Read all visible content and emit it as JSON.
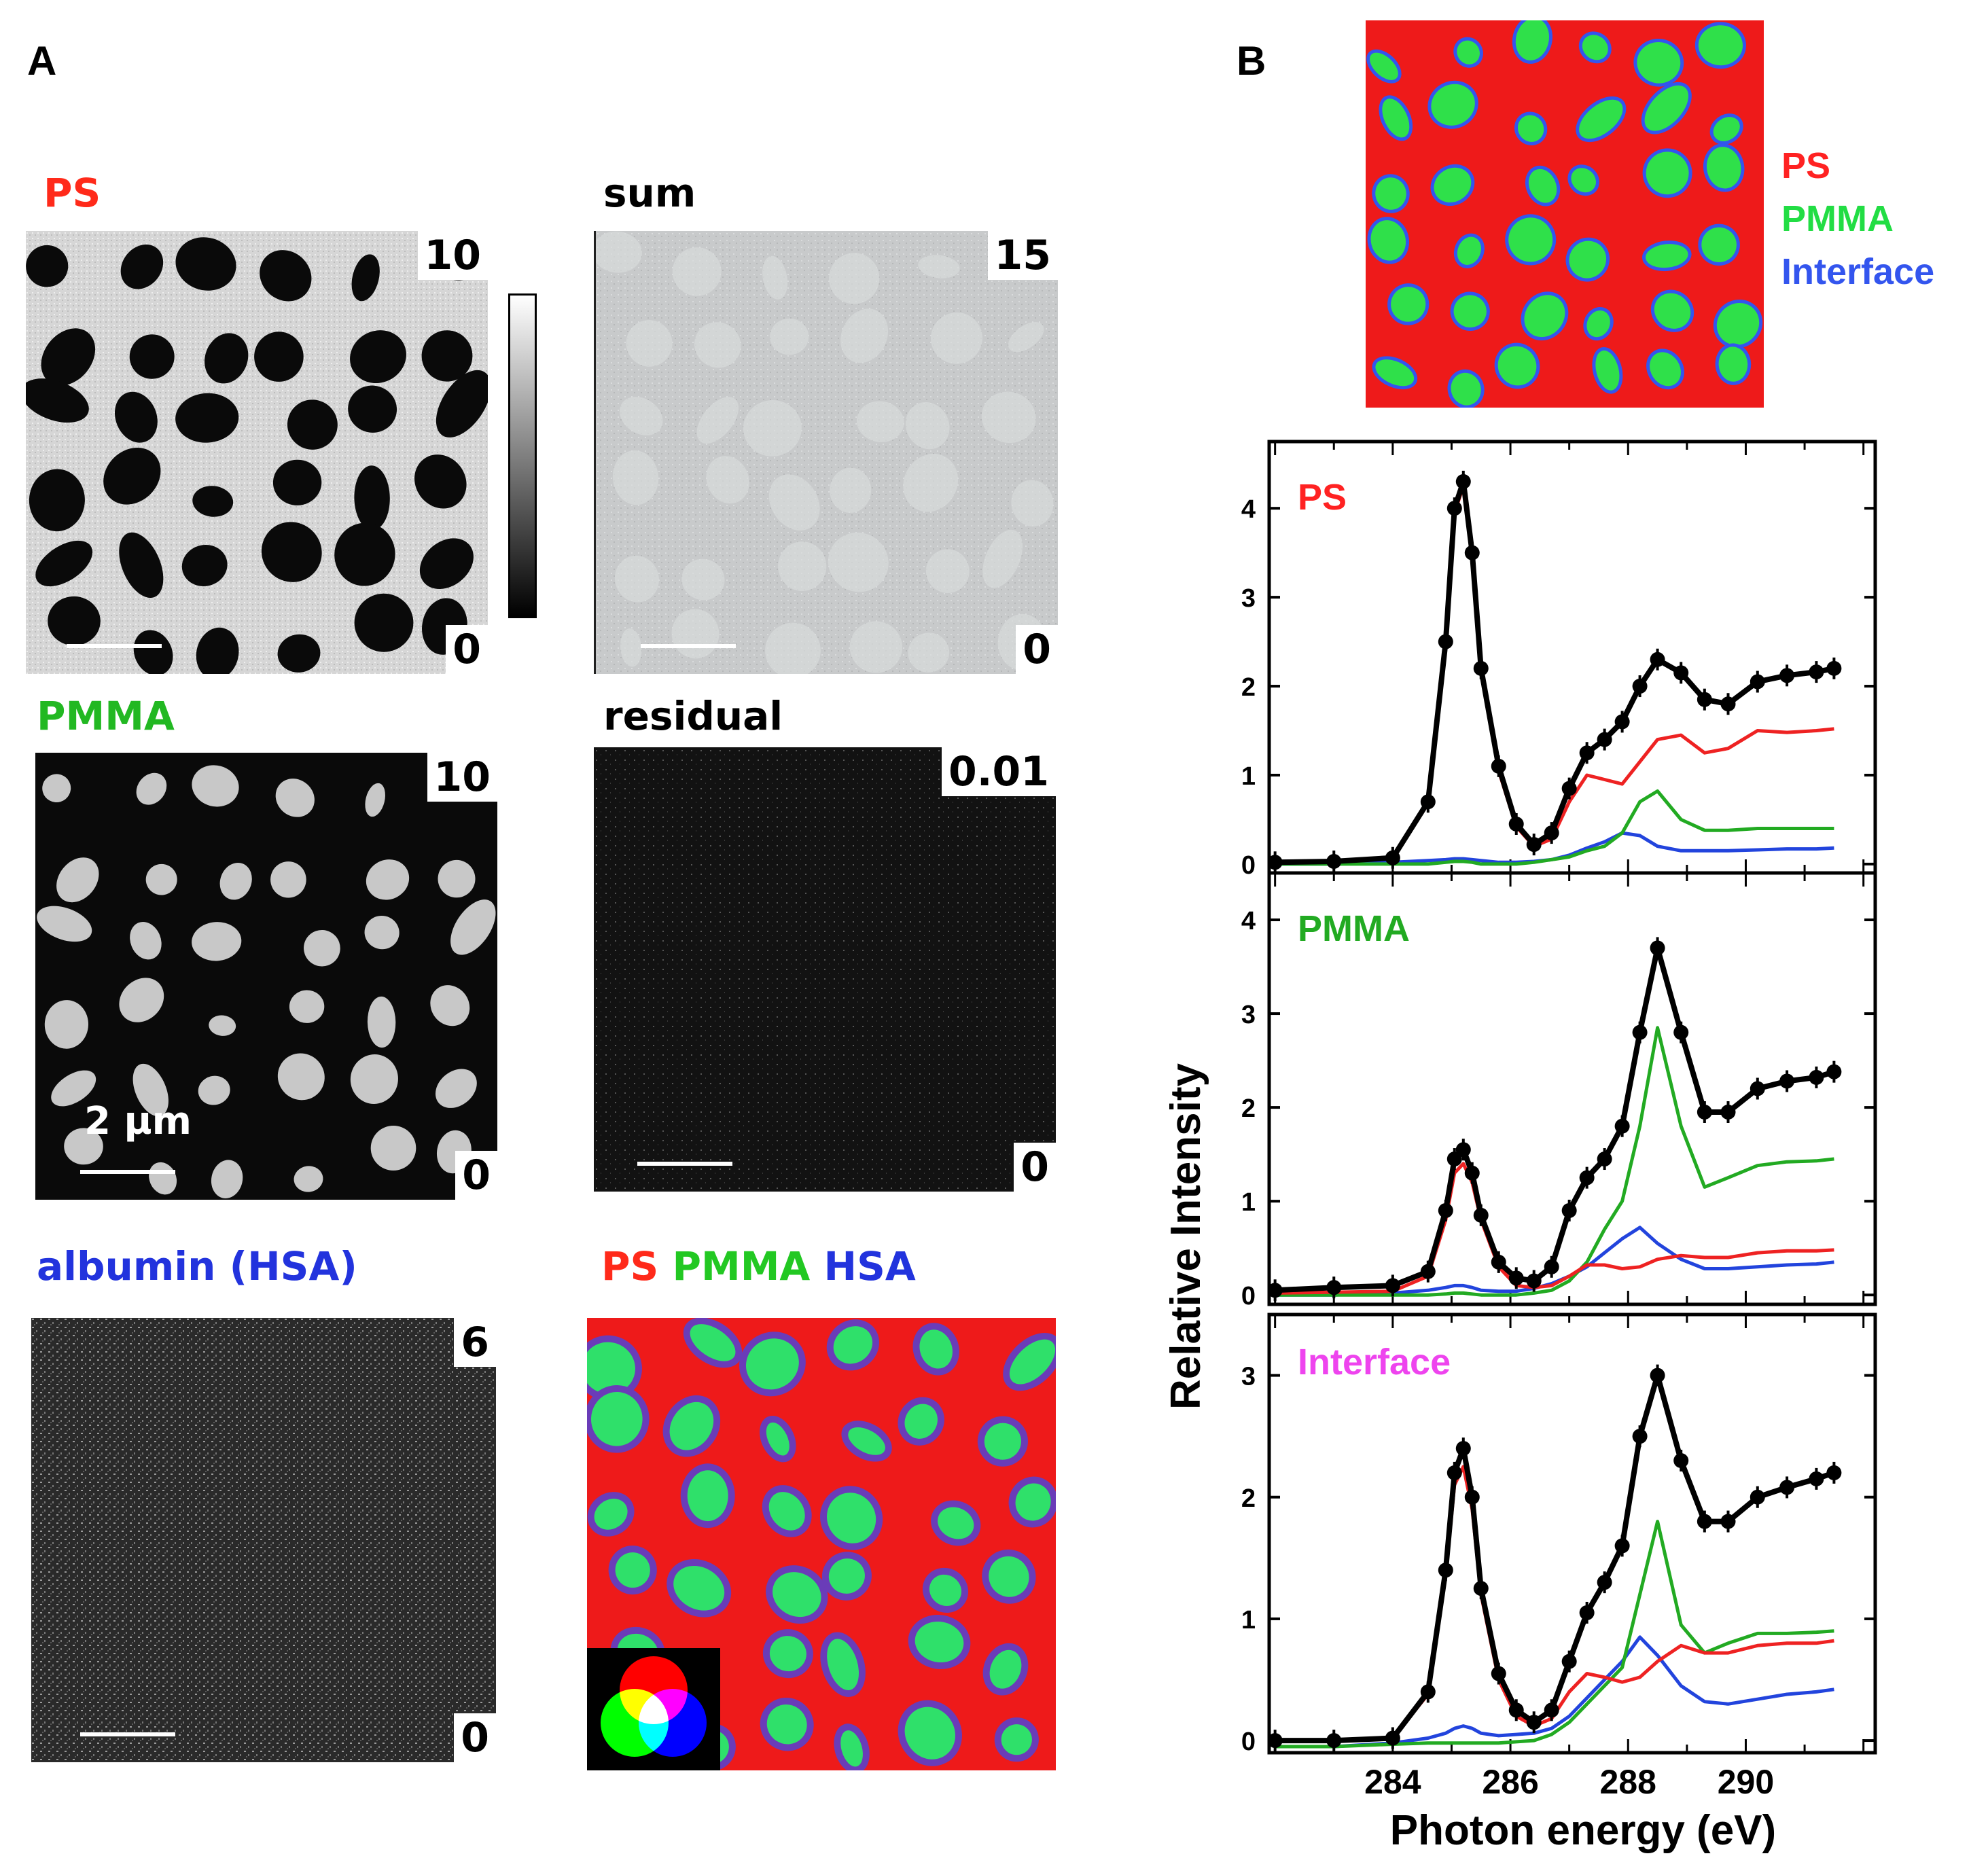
{
  "panelA": {
    "letter": "A",
    "images": [
      {
        "id": "ps",
        "label": "PS",
        "color": "#ff2a1a",
        "max": "10",
        "min": "0"
      },
      {
        "id": "sum",
        "label": "sum",
        "color": "#000000",
        "max": "15",
        "min": "0"
      },
      {
        "id": "pmma",
        "label": "PMMA",
        "color": "#22b822",
        "max": "10",
        "min": "0",
        "scale_text": "2 µm"
      },
      {
        "id": "residual",
        "label": "residual",
        "color": "#000000",
        "max": "0.01",
        "min": "0"
      },
      {
        "id": "hsa",
        "label": "albumin (HSA)",
        "color": "#2233dd",
        "max": "6",
        "min": "0"
      }
    ],
    "composite": {
      "labels": [
        {
          "text": "PS",
          "color": "#ff2a1a"
        },
        {
          "text": "PMMA",
          "color": "#22c822"
        },
        {
          "text": "HSA",
          "color": "#2233dd"
        }
      ]
    }
  },
  "panelB": {
    "letter": "B",
    "map_legend": [
      {
        "text": "PS",
        "color": "#ff2222"
      },
      {
        "text": "PMMA",
        "color": "#22dd44"
      },
      {
        "text": "Interface",
        "color": "#3355ee"
      }
    ]
  },
  "chart_data": {
    "type": "line",
    "xlabel": "Photon energy (eV)",
    "ylabel": "Relative Intensity",
    "xlim": [
      281.9,
      292.2
    ],
    "xticks": [
      284,
      286,
      288,
      290
    ],
    "series_colors": {
      "measured": "#000000",
      "ps": "#ee2222",
      "pmma": "#22aa22",
      "interface": "#2244dd"
    },
    "panels": [
      {
        "title": "PS",
        "title_color": "#ff2222",
        "ylim": [
          -0.1,
          4.75
        ],
        "yticks": [
          0,
          1,
          2,
          3,
          4
        ],
        "x": [
          282.0,
          283.0,
          284.0,
          284.6,
          284.9,
          285.05,
          285.2,
          285.35,
          285.5,
          285.8,
          286.1,
          286.4,
          286.7,
          287.0,
          287.3,
          287.6,
          287.9,
          288.2,
          288.5,
          288.9,
          289.3,
          289.7,
          290.2,
          290.7,
          291.2,
          291.5
        ],
        "series": [
          {
            "name": "measured",
            "values": [
              0.02,
              0.03,
              0.07,
              0.7,
              2.5,
              4.0,
              4.3,
              3.5,
              2.2,
              1.1,
              0.45,
              0.22,
              0.35,
              0.85,
              1.25,
              1.4,
              1.6,
              2.0,
              2.3,
              2.15,
              1.85,
              1.8,
              2.05,
              2.12,
              2.16,
              2.2
            ]
          },
          {
            "name": "ps",
            "values": [
              0.02,
              0.03,
              0.06,
              0.68,
              2.45,
              3.95,
              4.25,
              3.45,
              2.15,
              1.05,
              0.42,
              0.2,
              0.28,
              0.7,
              1.0,
              0.95,
              0.9,
              1.15,
              1.4,
              1.45,
              1.25,
              1.3,
              1.5,
              1.48,
              1.5,
              1.52
            ]
          },
          {
            "name": "pmma",
            "values": [
              0.0,
              0.0,
              0.0,
              0.0,
              0.02,
              0.03,
              0.03,
              0.02,
              0.0,
              0.0,
              0.0,
              0.02,
              0.05,
              0.08,
              0.15,
              0.2,
              0.35,
              0.7,
              0.82,
              0.5,
              0.38,
              0.38,
              0.4,
              0.4,
              0.4,
              0.4
            ]
          },
          {
            "name": "interface",
            "values": [
              0.0,
              0.0,
              0.02,
              0.04,
              0.05,
              0.06,
              0.06,
              0.05,
              0.04,
              0.02,
              0.02,
              0.03,
              0.05,
              0.1,
              0.18,
              0.25,
              0.35,
              0.32,
              0.2,
              0.15,
              0.15,
              0.15,
              0.16,
              0.17,
              0.17,
              0.18
            ]
          }
        ]
      },
      {
        "title": "PMMA",
        "title_color": "#22aa22",
        "ylim": [
          -0.1,
          4.5
        ],
        "yticks": [
          0,
          1,
          2,
          3,
          4
        ],
        "x": [
          282.0,
          283.0,
          284.0,
          284.6,
          284.9,
          285.05,
          285.2,
          285.35,
          285.5,
          285.8,
          286.1,
          286.4,
          286.7,
          287.0,
          287.3,
          287.6,
          287.9,
          288.2,
          288.5,
          288.9,
          289.3,
          289.7,
          290.2,
          290.7,
          291.2,
          291.5
        ],
        "series": [
          {
            "name": "measured",
            "values": [
              0.05,
              0.08,
              0.1,
              0.25,
              0.9,
              1.45,
              1.55,
              1.3,
              0.85,
              0.35,
              0.18,
              0.15,
              0.3,
              0.9,
              1.25,
              1.45,
              1.8,
              2.8,
              3.7,
              2.8,
              1.95,
              1.95,
              2.2,
              2.28,
              2.32,
              2.38
            ]
          },
          {
            "name": "ps",
            "values": [
              0.02,
              0.03,
              0.04,
              0.2,
              0.8,
              1.3,
              1.4,
              1.2,
              0.8,
              0.3,
              0.1,
              0.08,
              0.1,
              0.2,
              0.32,
              0.32,
              0.28,
              0.3,
              0.38,
              0.42,
              0.4,
              0.4,
              0.45,
              0.47,
              0.47,
              0.48
            ]
          },
          {
            "name": "pmma",
            "values": [
              0.0,
              0.0,
              0.0,
              0.0,
              0.01,
              0.02,
              0.02,
              0.01,
              0.0,
              0.0,
              0.0,
              0.02,
              0.05,
              0.15,
              0.35,
              0.7,
              1.0,
              1.8,
              2.85,
              1.8,
              1.15,
              1.25,
              1.38,
              1.42,
              1.43,
              1.45
            ]
          },
          {
            "name": "interface",
            "values": [
              0.0,
              0.0,
              0.02,
              0.05,
              0.08,
              0.1,
              0.1,
              0.08,
              0.05,
              0.04,
              0.04,
              0.07,
              0.12,
              0.2,
              0.3,
              0.45,
              0.6,
              0.72,
              0.55,
              0.38,
              0.28,
              0.28,
              0.3,
              0.32,
              0.33,
              0.35
            ]
          }
        ]
      },
      {
        "title": "Interface",
        "title_color": "#ee44ee",
        "ylim": [
          -0.1,
          3.5
        ],
        "yticks": [
          0,
          1,
          2,
          3
        ],
        "x": [
          282.0,
          283.0,
          284.0,
          284.6,
          284.9,
          285.05,
          285.2,
          285.35,
          285.5,
          285.8,
          286.1,
          286.4,
          286.7,
          287.0,
          287.3,
          287.6,
          287.9,
          288.2,
          288.5,
          288.9,
          289.3,
          289.7,
          290.2,
          290.7,
          291.2,
          291.5
        ],
        "series": [
          {
            "name": "measured",
            "values": [
              0.0,
              0.0,
              0.02,
              0.4,
              1.4,
              2.2,
              2.4,
              2.0,
              1.25,
              0.55,
              0.25,
              0.15,
              0.25,
              0.65,
              1.05,
              1.3,
              1.6,
              2.5,
              3.0,
              2.3,
              1.8,
              1.8,
              2.0,
              2.08,
              2.15,
              2.2
            ]
          },
          {
            "name": "ps",
            "values": [
              0.0,
              0.0,
              0.02,
              0.38,
              1.35,
              2.1,
              2.25,
              1.9,
              1.2,
              0.5,
              0.2,
              0.12,
              0.18,
              0.4,
              0.55,
              0.52,
              0.48,
              0.52,
              0.65,
              0.78,
              0.72,
              0.72,
              0.78,
              0.8,
              0.8,
              0.82
            ]
          },
          {
            "name": "pmma",
            "values": [
              -0.05,
              -0.05,
              -0.03,
              -0.02,
              -0.02,
              -0.02,
              -0.02,
              -0.02,
              -0.02,
              -0.02,
              -0.01,
              0.0,
              0.05,
              0.15,
              0.3,
              0.45,
              0.6,
              1.2,
              1.8,
              0.95,
              0.72,
              0.8,
              0.88,
              0.88,
              0.89,
              0.9
            ]
          },
          {
            "name": "interface",
            "values": [
              -0.05,
              -0.05,
              -0.02,
              0.02,
              0.06,
              0.1,
              0.12,
              0.1,
              0.06,
              0.04,
              0.05,
              0.06,
              0.1,
              0.2,
              0.35,
              0.5,
              0.65,
              0.85,
              0.7,
              0.45,
              0.32,
              0.3,
              0.34,
              0.38,
              0.4,
              0.42
            ]
          }
        ]
      }
    ]
  }
}
